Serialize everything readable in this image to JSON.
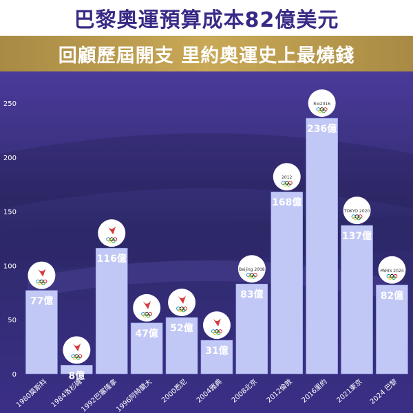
{
  "header": {
    "title": "巴黎奧運預算成本82億美元",
    "subtitle": "回顧歷屆開支 里約奧運史上最燒錢"
  },
  "colors": {
    "bar": "#c2c8f5",
    "bar_edge": "#8f98e6",
    "label": "#ffffff",
    "background": "#3b2a78",
    "title": "#3a2a86",
    "subtitle_band": "#c4a24f"
  },
  "chart_data": {
    "type": "bar",
    "title": "巴黎奧運預算成本82億美元",
    "subtitle": "回顧歷屆開支 里約奧運史上最燒錢",
    "categories": [
      "1980莫斯科",
      "1984洛杉磯",
      "1992巴塞隆拿",
      "1996阿特蘭大",
      "2000悉尼",
      "2004雅典",
      "2008北京",
      "2012倫敦",
      "2016里約",
      "2021東京",
      "2024 巴黎"
    ],
    "values": [
      77,
      8,
      116,
      47,
      52,
      31,
      83,
      168,
      236,
      137,
      82
    ],
    "data_labels": [
      "77億",
      "8億",
      "116億",
      "47億",
      "52億",
      "31億",
      "83億",
      "168億",
      "236億",
      "137億",
      "82億"
    ],
    "logo_icons": [
      "moscow-1980-logo-icon",
      "los-angeles-1984-logo-icon",
      "barcelona-1992-logo-icon",
      "atlanta-1996-logo-icon",
      "sydney-2000-logo-icon",
      "athens-2004-logo-icon",
      "beijing-2008-logo-icon",
      "london-2012-logo-icon",
      "rio-2016-logo-icon",
      "tokyo-2020-logo-icon",
      "paris-2024-logo-icon"
    ],
    "logo_texts": [
      "",
      "",
      "",
      "",
      "",
      "",
      "Beijing 2008",
      "2012",
      "Rio2016",
      "TOKYO 2020",
      "PARIS 2024"
    ],
    "yticks": [
      0,
      50,
      100,
      150,
      200,
      250
    ],
    "ylim": [
      0,
      250
    ],
    "xlabel": "",
    "ylabel": "",
    "grid": false
  }
}
